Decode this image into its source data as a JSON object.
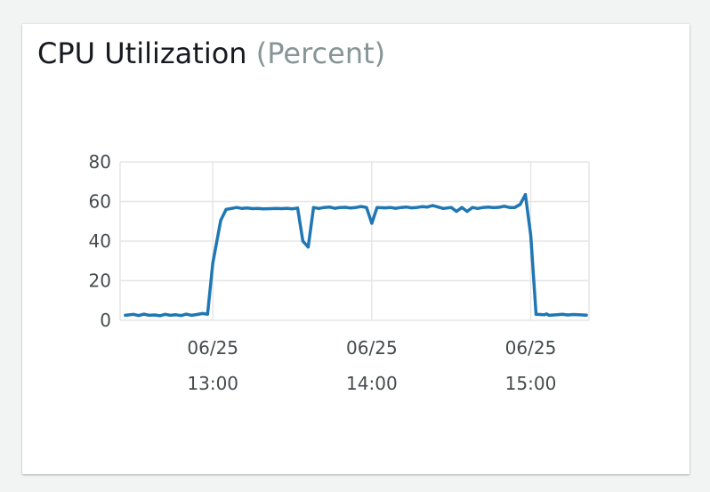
{
  "widget": {
    "title": "CPU Utilization",
    "unit": "(Percent)"
  },
  "chart_data": {
    "type": "line",
    "title": "CPU Utilization (Percent)",
    "xlabel": "",
    "ylabel": "",
    "ylim": [
      0,
      80
    ],
    "yticks": [
      "0",
      "20",
      "40",
      "60",
      "80"
    ],
    "xlim": [
      "2024-06-25 12:25",
      "2024-06-25 15:22"
    ],
    "xticks": [
      {
        "t": "2024-06-25 13:00",
        "date": "06/25",
        "time": "13:00"
      },
      {
        "t": "2024-06-25 14:00",
        "date": "06/25",
        "time": "14:00"
      },
      {
        "t": "2024-06-25 15:00",
        "date": "06/25",
        "time": "15:00"
      }
    ],
    "grid": true,
    "color": "#1f77b4",
    "series": [
      {
        "x": [
          "2024-06-25 12:27",
          "2024-06-25 12:30",
          "2024-06-25 12:32",
          "2024-06-25 12:34",
          "2024-06-25 12:36",
          "2024-06-25 12:38",
          "2024-06-25 12:40",
          "2024-06-25 12:42",
          "2024-06-25 12:44",
          "2024-06-25 12:46",
          "2024-06-25 12:48",
          "2024-06-25 12:50",
          "2024-06-25 12:52",
          "2024-06-25 12:54",
          "2024-06-25 12:56",
          "2024-06-25 12:58",
          "2024-06-25 13:00",
          "2024-06-25 13:03",
          "2024-06-25 13:05",
          "2024-06-25 13:07",
          "2024-06-25 13:09",
          "2024-06-25 13:11",
          "2024-06-25 13:13",
          "2024-06-25 13:15",
          "2024-06-25 13:17",
          "2024-06-25 13:19",
          "2024-06-25 13:22",
          "2024-06-25 13:24",
          "2024-06-25 13:26",
          "2024-06-25 13:28",
          "2024-06-25 13:30",
          "2024-06-25 13:32",
          "2024-06-25 13:34",
          "2024-06-25 13:36",
          "2024-06-25 13:38",
          "2024-06-25 13:40",
          "2024-06-25 13:42",
          "2024-06-25 13:44",
          "2024-06-25 13:46",
          "2024-06-25 13:48",
          "2024-06-25 13:50",
          "2024-06-25 13:52",
          "2024-06-25 13:54",
          "2024-06-25 13:56",
          "2024-06-25 13:58",
          "2024-06-25 14:00",
          "2024-06-25 14:02",
          "2024-06-25 14:05",
          "2024-06-25 14:07",
          "2024-06-25 14:09",
          "2024-06-25 14:11",
          "2024-06-25 14:13",
          "2024-06-25 14:15",
          "2024-06-25 14:17",
          "2024-06-25 14:19",
          "2024-06-25 14:21",
          "2024-06-25 14:23",
          "2024-06-25 14:25",
          "2024-06-25 14:27",
          "2024-06-25 14:30",
          "2024-06-25 14:32",
          "2024-06-25 14:34",
          "2024-06-25 14:36",
          "2024-06-25 14:38",
          "2024-06-25 14:40",
          "2024-06-25 14:42",
          "2024-06-25 14:44",
          "2024-06-25 14:46",
          "2024-06-25 14:48",
          "2024-06-25 14:50",
          "2024-06-25 14:52",
          "2024-06-25 14:54",
          "2024-06-25 14:56",
          "2024-06-25 14:58",
          "2024-06-25 15:00",
          "2024-06-25 15:02",
          "2024-06-25 15:05",
          "2024-06-25 15:06",
          "2024-06-25 15:07",
          "2024-06-25 15:10",
          "2024-06-25 15:12",
          "2024-06-25 15:14",
          "2024-06-25 15:16",
          "2024-06-25 15:18",
          "2024-06-25 15:21"
        ],
        "y": [
          2.5,
          3.0,
          2.4,
          3.1,
          2.5,
          2.7,
          2.3,
          3.0,
          2.5,
          2.8,
          2.4,
          3.1,
          2.5,
          2.9,
          3.4,
          3.1,
          29.0,
          50.5,
          56.0,
          56.5,
          57.0,
          56.5,
          56.7,
          56.4,
          56.5,
          56.3,
          56.4,
          56.5,
          56.4,
          56.6,
          56.3,
          56.7,
          40.0,
          37.0,
          57.0,
          56.5,
          57.0,
          57.2,
          56.6,
          57.0,
          57.1,
          56.7,
          57.0,
          57.5,
          57.0,
          49.0,
          57.0,
          56.8,
          57.0,
          56.6,
          57.0,
          57.2,
          56.8,
          57.0,
          57.4,
          57.2,
          58.0,
          57.2,
          56.5,
          57.0,
          55.0,
          57.0,
          55.0,
          57.0,
          56.5,
          57.0,
          57.2,
          56.9,
          57.1,
          57.6,
          57.0,
          57.0,
          58.5,
          63.5,
          43.0,
          3.0,
          2.8,
          3.2,
          2.5,
          2.8,
          3.0,
          2.7,
          2.9,
          2.8,
          2.6
        ]
      }
    ]
  }
}
